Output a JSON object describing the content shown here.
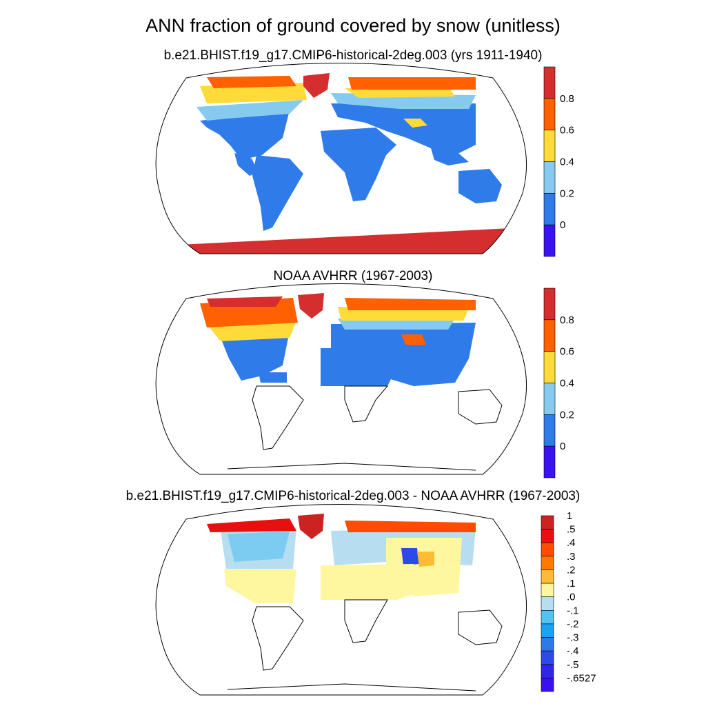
{
  "title": "ANN fraction of ground covered by snow (unitless)",
  "panels": [
    {
      "id": "model",
      "subtitle": "b.e21.BHIST.f19_g17.CMIP6-historical-2deg.003 (yrs 1911-1940)"
    },
    {
      "id": "obs",
      "subtitle": "NOAA AVHRR (1967-2003)"
    },
    {
      "id": "diff",
      "subtitle": "b.e21.BHIST.f19_g17.CMIP6-historical-2deg.003 - NOAA AVHRR (1967-2003)"
    }
  ],
  "colorbar_main": {
    "colors": [
      "#d42e2e",
      "#ff6000",
      "#fedb38",
      "#86cbef",
      "#2e7be9",
      "#3a14f0"
    ],
    "labels": [
      "0.8",
      "0.6",
      "0.4",
      "0.2",
      "0"
    ]
  },
  "colorbar_diff": {
    "colors": [
      "#cc2222",
      "#e61010",
      "#ff4c00",
      "#ff7a00",
      "#ffbb33",
      "#fff7a0",
      "#b6ddf0",
      "#54c2f0",
      "#1aa3f4",
      "#2f78e8",
      "#2d4ae8",
      "#3026e8",
      "#3a10f0"
    ],
    "labels": [
      "1",
      ".5",
      ".4",
      ".3",
      ".2",
      ".1",
      ".0",
      "-.1",
      "-.2",
      "-.3",
      "-.4",
      "-.5",
      "-.6527"
    ]
  }
}
